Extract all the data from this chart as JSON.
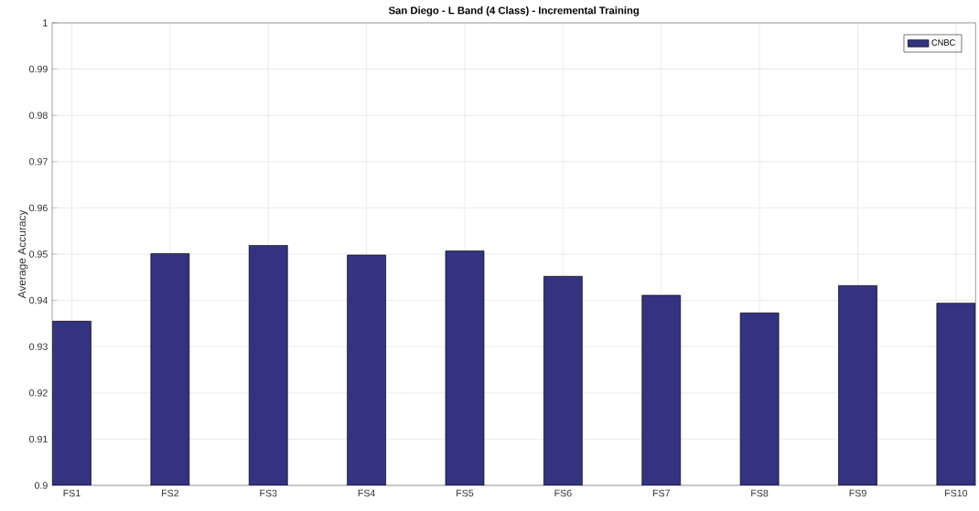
{
  "chart_data": {
    "type": "bar",
    "title": "San Diego - L Band (4 Class) - Incremental Training",
    "ylabel": "Average Accuracy",
    "categories": [
      "FS1",
      "FS2",
      "FS3",
      "FS4",
      "FS5",
      "FS6",
      "FS7",
      "FS8",
      "FS9",
      "FS10"
    ],
    "series": [
      {
        "name": "CNBC",
        "color": "#333380",
        "values": [
          0.9355,
          0.9501,
          0.9519,
          0.9498,
          0.9507,
          0.9452,
          0.9411,
          0.9373,
          0.9432,
          0.9394
        ]
      }
    ],
    "ylim": [
      0.9,
      1
    ],
    "yticks": [
      0.9,
      0.91,
      0.92,
      0.93,
      0.94,
      0.95,
      0.96,
      0.97,
      0.98,
      0.99,
      1
    ],
    "grid": true,
    "legend": "top right"
  }
}
